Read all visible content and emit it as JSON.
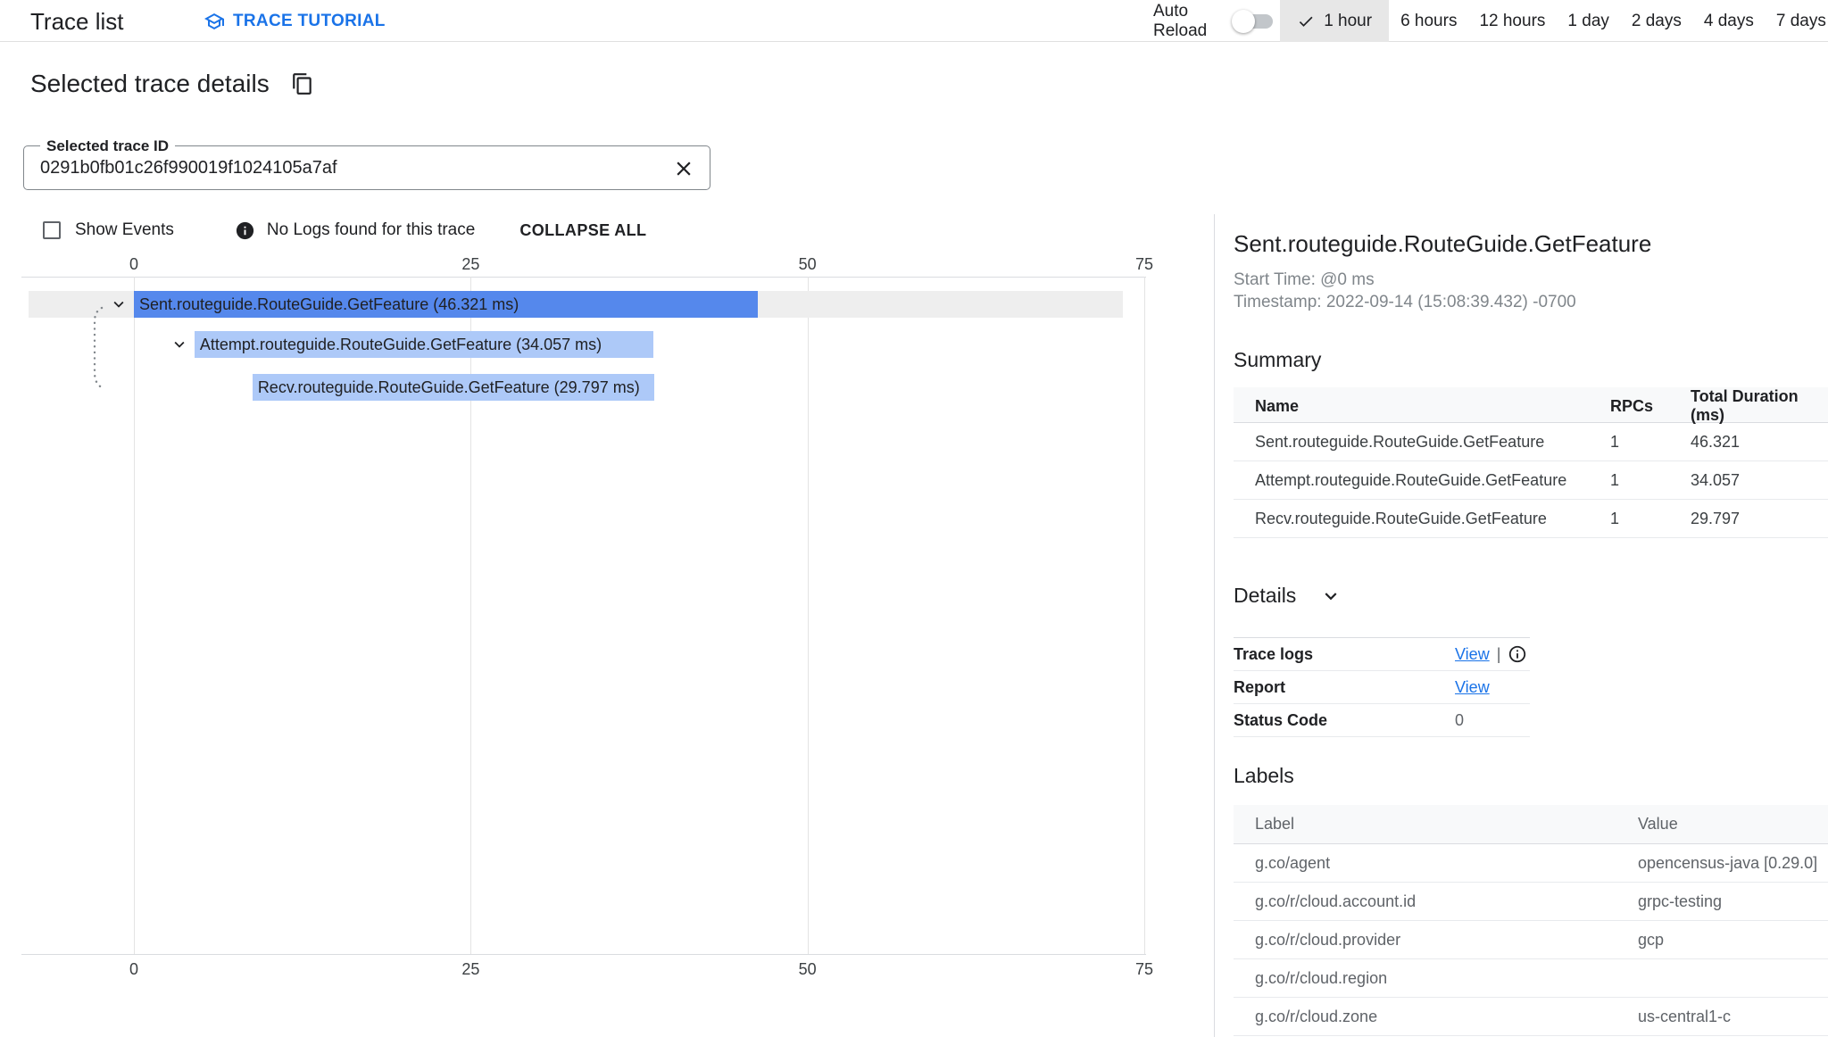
{
  "header": {
    "title": "Trace list",
    "tutorial_label": "TRACE TUTORIAL",
    "auto_reload_label": "Auto Reload",
    "auto_reload_on": false,
    "time_ranges": [
      {
        "label": "1 hour",
        "selected": true
      },
      {
        "label": "6 hours",
        "selected": false
      },
      {
        "label": "12 hours",
        "selected": false
      },
      {
        "label": "1 day",
        "selected": false
      },
      {
        "label": "2 days",
        "selected": false
      },
      {
        "label": "4 days",
        "selected": false
      },
      {
        "label": "7 days",
        "selected": false
      }
    ]
  },
  "details_header": {
    "title": "Selected trace details",
    "trace_id_label": "Selected trace ID",
    "trace_id_value": "0291b0fb01c26f990019f1024105a7af"
  },
  "controls": {
    "show_events_label": "Show Events",
    "show_events_checked": false,
    "no_logs_message": "No Logs found for this trace",
    "collapse_all_label": "COLLAPSE ALL"
  },
  "chart_data": {
    "type": "gantt",
    "unit": "ms",
    "axis_ticks": [
      0,
      25,
      50,
      75
    ],
    "spans": [
      {
        "name": "Sent.routeguide.RouteGuide.GetFeature",
        "start_ms": 0,
        "duration_ms": 46.321,
        "label": "Sent.routeguide.RouteGuide.GetFeature (46.321 ms)",
        "selected": true,
        "expandable": true
      },
      {
        "name": "Attempt.routeguide.RouteGuide.GetFeature",
        "start_ms": 4.5,
        "duration_ms": 34.057,
        "label": "Attempt.routeguide.RouteGuide.GetFeature (34.057 ms)",
        "selected": false,
        "expandable": true
      },
      {
        "name": "Recv.routeguide.RouteGuide.GetFeature",
        "start_ms": 8.8,
        "duration_ms": 29.797,
        "label": "Recv.routeguide.RouteGuide.GetFeature (29.797 ms)",
        "selected": false,
        "expandable": false
      }
    ],
    "colors": {
      "selected_bar": "#5588ec",
      "bar": "#adc9f8",
      "selected_row_bg": "#eeeeee",
      "accent": "#1a73e8"
    }
  },
  "panel": {
    "title": "Sent.routeguide.RouteGuide.GetFeature",
    "start_time": "Start Time: @0 ms",
    "timestamp": "Timestamp: 2022-09-14 (15:08:39.432) -0700",
    "summary": {
      "heading": "Summary",
      "columns": [
        "Name",
        "RPCs",
        "Total Duration (ms)"
      ],
      "rows": [
        {
          "name": "Sent.routeguide.RouteGuide.GetFeature",
          "rpcs": "1",
          "duration": "46.321"
        },
        {
          "name": "Attempt.routeguide.RouteGuide.GetFeature",
          "rpcs": "1",
          "duration": "34.057"
        },
        {
          "name": "Recv.routeguide.RouteGuide.GetFeature",
          "rpcs": "1",
          "duration": "29.797"
        }
      ]
    },
    "details": {
      "heading": "Details",
      "rows": [
        {
          "label": "Trace logs",
          "value": "View",
          "separator": "|",
          "has_info_icon": true
        },
        {
          "label": "Report",
          "value": "View"
        },
        {
          "label": "Status Code",
          "value": "0"
        }
      ]
    },
    "labels": {
      "heading": "Labels",
      "columns": [
        "Label",
        "Value"
      ],
      "rows": [
        {
          "label": "g.co/agent",
          "value": "opencensus-java [0.29.0]"
        },
        {
          "label": "g.co/r/cloud.account.id",
          "value": "grpc-testing"
        },
        {
          "label": "g.co/r/cloud.provider",
          "value": "gcp"
        },
        {
          "label": "g.co/r/cloud.region",
          "value": ""
        },
        {
          "label": "g.co/r/cloud.zone",
          "value": "us-central1-c"
        }
      ]
    }
  }
}
